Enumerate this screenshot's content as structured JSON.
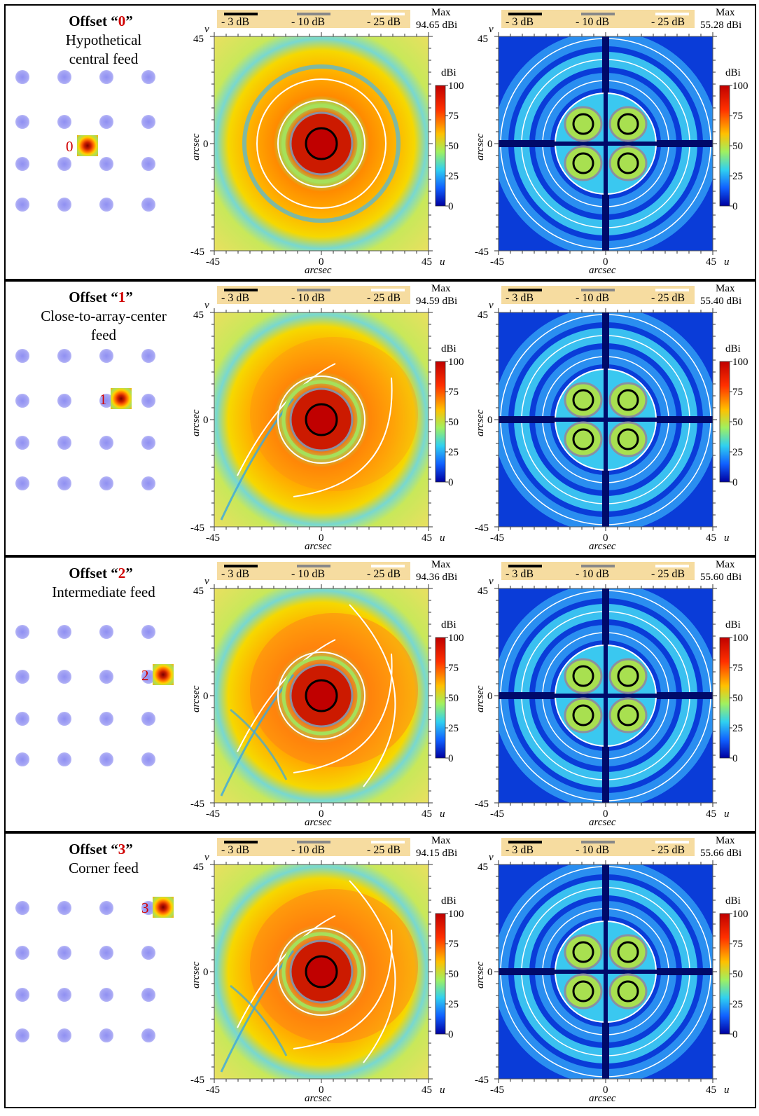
{
  "rows": [
    {
      "offset_prefix": "Offset “",
      "offset_num": "0",
      "offset_suffix": "”",
      "subtitle_lines": [
        "Hypothetical",
        "central feed"
      ],
      "feed_label": "0",
      "feed_position": {
        "col": 1.5,
        "row": 1.5
      },
      "copolar_max": "94.65 dBi",
      "crosspolar_max": "55.28 dBi",
      "pattern": "center"
    },
    {
      "offset_prefix": "Offset “",
      "offset_num": "1",
      "offset_suffix": "”",
      "subtitle_lines": [
        "Close-to-array-center",
        "feed"
      ],
      "feed_label": "1",
      "feed_position": {
        "col": 2,
        "row": 1
      },
      "copolar_max": "94.59 dBi",
      "crosspolar_max": "55.40 dBi",
      "pattern": "close"
    },
    {
      "offset_prefix": "Offset “",
      "offset_num": "2",
      "offset_suffix": "”",
      "subtitle_lines": [
        "Intermediate feed"
      ],
      "feed_label": "2",
      "feed_position": {
        "col": 3,
        "row": 1
      },
      "copolar_max": "94.36 dBi",
      "crosspolar_max": "55.60 dBi",
      "pattern": "intermediate"
    },
    {
      "offset_prefix": "Offset “",
      "offset_num": "3",
      "offset_suffix": "”",
      "subtitle_lines": [
        "Corner feed"
      ],
      "feed_label": "3",
      "feed_position": {
        "col": 3,
        "row": 0
      },
      "copolar_max": "94.15 dBi",
      "crosspolar_max": "55.66 dBi",
      "pattern": "corner"
    }
  ],
  "legend": {
    "level_3db": "- 3 dB",
    "level_10db": "- 10 dB",
    "level_25db": "- 25 dB",
    "max_label": "Max",
    "color_3db": "#000000",
    "color_10db": "#888888",
    "color_25db": "#ffffff"
  },
  "colorbar": {
    "unit": "dBi",
    "ticks": [
      "100",
      "75",
      "50",
      "25",
      "0"
    ]
  },
  "axes": {
    "xlabel": "arcsec",
    "ylabel": "arcsec",
    "u_label": "u",
    "v_label": "v",
    "ticks": [
      "-45",
      "0",
      "45"
    ]
  },
  "colors": {
    "feature_red": "#d00000",
    "array_element": "#9a9af3",
    "legend_bg": "#f6dca0"
  }
}
